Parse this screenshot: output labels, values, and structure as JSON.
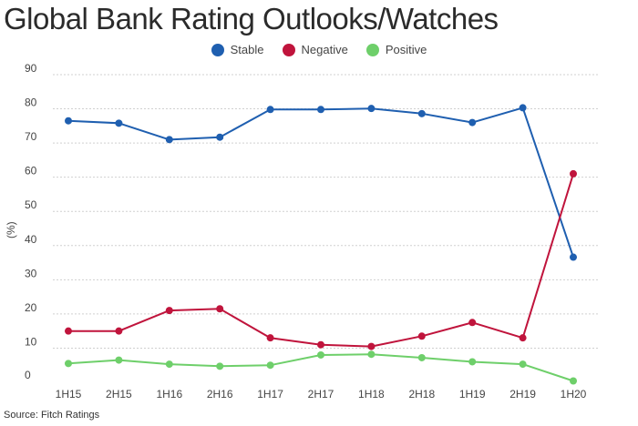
{
  "title": "Global Bank Rating Outlooks/Watches",
  "source": "Source: Fitch Ratings",
  "chart_data": {
    "type": "line",
    "ylabel": "(%)",
    "xlabel": "",
    "categories": [
      "1H15",
      "2H15",
      "1H16",
      "2H16",
      "1H17",
      "2H17",
      "1H18",
      "2H18",
      "1H19",
      "2H19",
      "1H20"
    ],
    "ylim": [
      0,
      90
    ],
    "yticks": [
      0,
      10,
      20,
      30,
      40,
      50,
      60,
      70,
      80,
      90
    ],
    "grid": "horizontal dashed",
    "legend_position": "top-center",
    "series": [
      {
        "name": "Stable",
        "color": "#1f5fb0",
        "values": [
          76.5,
          75.8,
          71,
          71.7,
          79.8,
          79.8,
          80.1,
          78.6,
          76,
          80.3,
          36.6
        ]
      },
      {
        "name": "Negative",
        "color": "#c0143c",
        "values": [
          15,
          15,
          21,
          21.5,
          13,
          11,
          10.5,
          13.5,
          17.5,
          13,
          61
        ]
      },
      {
        "name": "Positive",
        "color": "#6ecf6a",
        "values": [
          5.5,
          6.5,
          5.3,
          4.7,
          5,
          8,
          8.2,
          7.2,
          6,
          5.3,
          0.4
        ]
      }
    ]
  }
}
